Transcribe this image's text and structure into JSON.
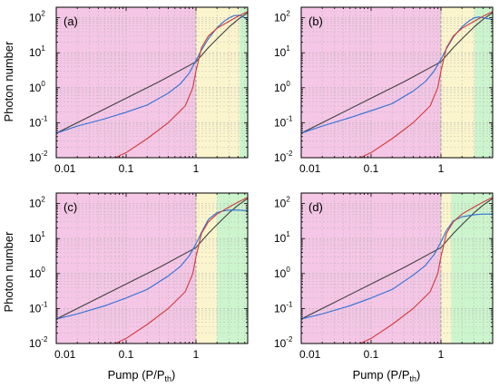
{
  "figure": {
    "ylabel": "Photon number",
    "xlabel_main": "Pump (P/P",
    "xlabel_sub": "th",
    "xlabel_close": ")"
  },
  "colors": {
    "pink": "#f5c6e6",
    "yellow": "#fbf5cd",
    "green": "#cdf5cd",
    "black_line": "#404040",
    "blue_line": "#2e6fd6",
    "red_line": "#d33a3a",
    "grid": "#b0b0b0",
    "threshold": "#999999"
  },
  "chart_data": [
    {
      "panel": "(a)",
      "type": "line",
      "xscale": "log",
      "yscale": "log",
      "xlim": [
        0.01,
        5.5
      ],
      "ylim": [
        0.01,
        200
      ],
      "xticks": [
        "0.01",
        "0.1",
        "1"
      ],
      "yticks": [
        {
          "base": "10",
          "exp": "-2",
          "v": 0.01
        },
        {
          "base": "10",
          "exp": "-1",
          "v": 0.1
        },
        {
          "base": "10",
          "exp": "0",
          "v": 1
        },
        {
          "base": "10",
          "exp": "1",
          "v": 10
        },
        {
          "base": "10",
          "exp": "2",
          "v": 100
        }
      ],
      "regions": [
        {
          "color": "pink",
          "x0": 0.01,
          "x1": 1.0
        },
        {
          "color": "yellow",
          "x0": 1.0,
          "x1": 4.2
        },
        {
          "color": "green",
          "x0": 4.2,
          "x1": 5.5
        }
      ],
      "threshold_x": 1,
      "series": [
        {
          "color": "black_line",
          "x": [
            0.01,
            0.03,
            0.1,
            0.3,
            1,
            1.5,
            2,
            3,
            4,
            5.5
          ],
          "y": [
            0.05,
            0.15,
            0.5,
            1.5,
            5.5,
            14,
            25,
            55,
            90,
            140
          ]
        },
        {
          "color": "blue_line",
          "x": [
            0.01,
            0.02,
            0.05,
            0.1,
            0.2,
            0.4,
            0.6,
            0.8,
            1.0,
            1.2,
            1.5,
            2,
            2.5,
            3,
            3.5,
            4.2,
            5.0,
            5.5
          ],
          "y": [
            0.05,
            0.08,
            0.13,
            0.2,
            0.32,
            0.7,
            1.3,
            2.6,
            6,
            12,
            25,
            52,
            78,
            100,
            115,
            118,
            100,
            85
          ]
        },
        {
          "color": "red_line",
          "x": [
            0.07,
            0.1,
            0.2,
            0.4,
            0.7,
            0.9,
            1.0,
            1.2,
            1.5,
            2,
            3,
            4,
            5.5
          ],
          "y": [
            0.01,
            0.014,
            0.035,
            0.1,
            0.3,
            1.0,
            3,
            14,
            30,
            50,
            80,
            110,
            150
          ]
        }
      ]
    },
    {
      "panel": "(b)",
      "type": "line",
      "xscale": "log",
      "yscale": "log",
      "xlim": [
        0.01,
        5.5
      ],
      "ylim": [
        0.01,
        200
      ],
      "xticks": [
        "0.01",
        "0.1",
        "1"
      ],
      "yticks": [
        {
          "base": "10",
          "exp": "-2",
          "v": 0.01
        },
        {
          "base": "10",
          "exp": "-1",
          "v": 0.1
        },
        {
          "base": "10",
          "exp": "0",
          "v": 1
        },
        {
          "base": "10",
          "exp": "1",
          "v": 10
        },
        {
          "base": "10",
          "exp": "2",
          "v": 100
        }
      ],
      "regions": [
        {
          "color": "pink",
          "x0": 0.01,
          "x1": 1.0
        },
        {
          "color": "yellow",
          "x0": 1.0,
          "x1": 3.0
        },
        {
          "color": "green",
          "x0": 3.0,
          "x1": 5.5
        }
      ],
      "threshold_x": 1,
      "series": [
        {
          "color": "black_line",
          "x": [
            0.01,
            0.03,
            0.1,
            0.3,
            1,
            1.5,
            2,
            3,
            4,
            5.5
          ],
          "y": [
            0.05,
            0.15,
            0.5,
            1.5,
            5.5,
            14,
            25,
            55,
            90,
            140
          ]
        },
        {
          "color": "blue_line",
          "x": [
            0.01,
            0.02,
            0.05,
            0.1,
            0.2,
            0.4,
            0.6,
            0.8,
            1.0,
            1.2,
            1.5,
            2,
            2.5,
            3,
            3.5,
            4,
            5.0,
            5.5
          ],
          "y": [
            0.05,
            0.08,
            0.14,
            0.22,
            0.35,
            0.8,
            1.5,
            3,
            6.5,
            13,
            28,
            55,
            80,
            100,
            105,
            100,
            92,
            88
          ]
        },
        {
          "color": "red_line",
          "x": [
            0.07,
            0.1,
            0.2,
            0.4,
            0.7,
            0.9,
            1.0,
            1.2,
            1.5,
            2,
            3,
            4,
            5.5
          ],
          "y": [
            0.01,
            0.014,
            0.035,
            0.1,
            0.3,
            1.0,
            3,
            14,
            30,
            50,
            80,
            110,
            150
          ]
        }
      ]
    },
    {
      "panel": "(c)",
      "type": "line",
      "xscale": "log",
      "yscale": "log",
      "xlim": [
        0.01,
        5.5
      ],
      "ylim": [
        0.01,
        200
      ],
      "xticks": [
        "0.01",
        "0.1",
        "1"
      ],
      "yticks": [
        {
          "base": "10",
          "exp": "-2",
          "v": 0.01
        },
        {
          "base": "10",
          "exp": "-1",
          "v": 0.1
        },
        {
          "base": "10",
          "exp": "0",
          "v": 1
        },
        {
          "base": "10",
          "exp": "1",
          "v": 10
        },
        {
          "base": "10",
          "exp": "2",
          "v": 100
        }
      ],
      "regions": [
        {
          "color": "pink",
          "x0": 0.01,
          "x1": 1.0
        },
        {
          "color": "yellow",
          "x0": 1.0,
          "x1": 2.0
        },
        {
          "color": "green",
          "x0": 2.0,
          "x1": 5.5
        }
      ],
      "threshold_x": 1,
      "series": [
        {
          "color": "black_line",
          "x": [
            0.01,
            0.03,
            0.1,
            0.3,
            1,
            1.5,
            2,
            3,
            4,
            5.5
          ],
          "y": [
            0.05,
            0.15,
            0.5,
            1.5,
            5.5,
            14,
            25,
            55,
            90,
            140
          ]
        },
        {
          "color": "blue_line",
          "x": [
            0.01,
            0.02,
            0.05,
            0.1,
            0.2,
            0.4,
            0.6,
            0.8,
            1.0,
            1.2,
            1.5,
            2,
            2.5,
            3,
            4,
            5.5
          ],
          "y": [
            0.05,
            0.07,
            0.12,
            0.2,
            0.35,
            0.85,
            1.6,
            3.2,
            7,
            15,
            35,
            55,
            62,
            65,
            65,
            62
          ]
        },
        {
          "color": "red_line",
          "x": [
            0.07,
            0.1,
            0.2,
            0.4,
            0.7,
            0.9,
            1.0,
            1.2,
            1.5,
            2,
            3,
            4,
            5.5
          ],
          "y": [
            0.01,
            0.014,
            0.035,
            0.1,
            0.3,
            1.0,
            3,
            14,
            30,
            50,
            80,
            110,
            150
          ]
        }
      ]
    },
    {
      "panel": "(d)",
      "type": "line",
      "xscale": "log",
      "yscale": "log",
      "xlim": [
        0.01,
        5.5
      ],
      "ylim": [
        0.01,
        200
      ],
      "xticks": [
        "0.01",
        "0.1",
        "1"
      ],
      "yticks": [
        {
          "base": "10",
          "exp": "-2",
          "v": 0.01
        },
        {
          "base": "10",
          "exp": "-1",
          "v": 0.1
        },
        {
          "base": "10",
          "exp": "0",
          "v": 1
        },
        {
          "base": "10",
          "exp": "1",
          "v": 10
        },
        {
          "base": "10",
          "exp": "2",
          "v": 100
        }
      ],
      "regions": [
        {
          "color": "pink",
          "x0": 0.01,
          "x1": 1.0
        },
        {
          "color": "yellow",
          "x0": 1.0,
          "x1": 1.4
        },
        {
          "color": "green",
          "x0": 1.4,
          "x1": 5.5
        }
      ],
      "threshold_x": 1,
      "series": [
        {
          "color": "black_line",
          "x": [
            0.01,
            0.03,
            0.1,
            0.3,
            1,
            1.5,
            2,
            3,
            4,
            5.5
          ],
          "y": [
            0.05,
            0.15,
            0.5,
            1.5,
            5.5,
            14,
            25,
            55,
            90,
            140
          ]
        },
        {
          "color": "blue_line",
          "x": [
            0.01,
            0.02,
            0.05,
            0.1,
            0.2,
            0.4,
            0.6,
            0.8,
            1.0,
            1.2,
            1.5,
            2,
            3,
            4,
            5.5
          ],
          "y": [
            0.05,
            0.07,
            0.12,
            0.2,
            0.35,
            0.9,
            1.7,
            3.5,
            8,
            17,
            32,
            42,
            48,
            50,
            50
          ]
        },
        {
          "color": "red_line",
          "x": [
            0.07,
            0.1,
            0.2,
            0.4,
            0.7,
            0.9,
            1.0,
            1.2,
            1.5,
            2,
            3,
            4,
            5.5
          ],
          "y": [
            0.01,
            0.014,
            0.035,
            0.1,
            0.3,
            1.0,
            3,
            14,
            30,
            50,
            80,
            110,
            150
          ]
        }
      ]
    }
  ]
}
